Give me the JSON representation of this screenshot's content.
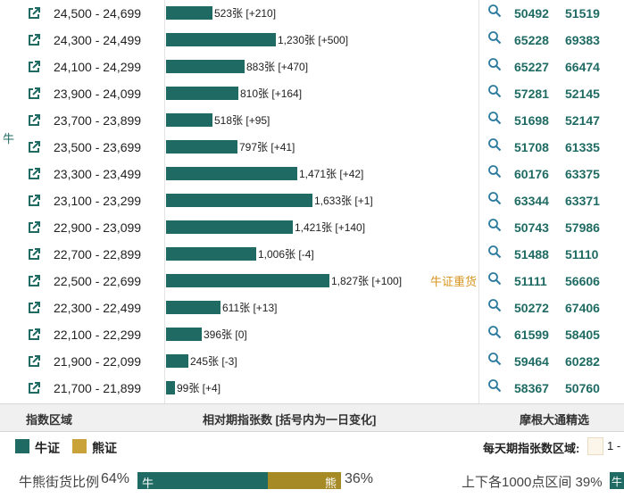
{
  "side_label": "牛",
  "rows": [
    {
      "range": "24,500 - 24,699",
      "count": 523,
      "label": "523张 [+210]",
      "n1": "50492",
      "n2": "51519"
    },
    {
      "range": "24,300 - 24,499",
      "count": 1230,
      "label": "1,230张 [+500]",
      "n1": "65228",
      "n2": "69383"
    },
    {
      "range": "24,100 - 24,299",
      "count": 883,
      "label": "883张 [+470]",
      "n1": "65227",
      "n2": "66474"
    },
    {
      "range": "23,900 - 24,099",
      "count": 810,
      "label": "810张 [+164]",
      "n1": "57281",
      "n2": "52145"
    },
    {
      "range": "23,700 - 23,899",
      "count": 518,
      "label": "518张 [+95]",
      "n1": "51698",
      "n2": "52147"
    },
    {
      "range": "23,500 - 23,699",
      "count": 797,
      "label": "797张 [+41]",
      "n1": "51708",
      "n2": "61335"
    },
    {
      "range": "23,300 - 23,499",
      "count": 1471,
      "label": "1,471张 [+42]",
      "n1": "60176",
      "n2": "63375"
    },
    {
      "range": "23,100 - 23,299",
      "count": 1633,
      "label": "1,633张 [+1]",
      "n1": "63344",
      "n2": "63371"
    },
    {
      "range": "22,900 - 23,099",
      "count": 1421,
      "label": "1,421张 [+140]",
      "n1": "50743",
      "n2": "57986"
    },
    {
      "range": "22,700 - 22,899",
      "count": 1006,
      "label": "1,006张 [-4]",
      "n1": "51488",
      "n2": "51110"
    },
    {
      "range": "22,500 - 22,699",
      "count": 1827,
      "label": "1,827张 [+100]",
      "n1": "51111",
      "n2": "56606",
      "tag": "牛证重货"
    },
    {
      "range": "22,300 - 22,499",
      "count": 611,
      "label": "611张 [+13]",
      "n1": "50272",
      "n2": "67406"
    },
    {
      "range": "22,100 - 22,299",
      "count": 396,
      "label": "396张 [0]",
      "n1": "61599",
      "n2": "58405"
    },
    {
      "range": "21,900 - 22,099",
      "count": 245,
      "label": "245张 [-3]",
      "n1": "59464",
      "n2": "60282"
    },
    {
      "range": "21,700 - 21,899",
      "count": 99,
      "label": "99张 [+4]",
      "n1": "58367",
      "n2": "50760"
    }
  ],
  "header": {
    "col1": "指数区域",
    "col2": "相对期指张数 [括号内为一日变化]",
    "col3": "摩根大通精选"
  },
  "legend": {
    "bull": "牛证",
    "bear": "熊证",
    "bull_color": "#1f6b63",
    "bear_color": "#c9a23a",
    "daily_label": "每天期指张数区域:",
    "daily_value": "1 -"
  },
  "ratio": {
    "label": "牛熊街货比例",
    "bull_pct": "64%",
    "bear_pct": "36%",
    "bull_fraction": 0.64,
    "bull_text": "牛",
    "bear_text": "熊",
    "right_text": "上下各1000点区间 39%",
    "right_bar_text": "牛"
  },
  "icons": {
    "row_link": "external-link-icon",
    "row_search": "search-icon"
  }
}
